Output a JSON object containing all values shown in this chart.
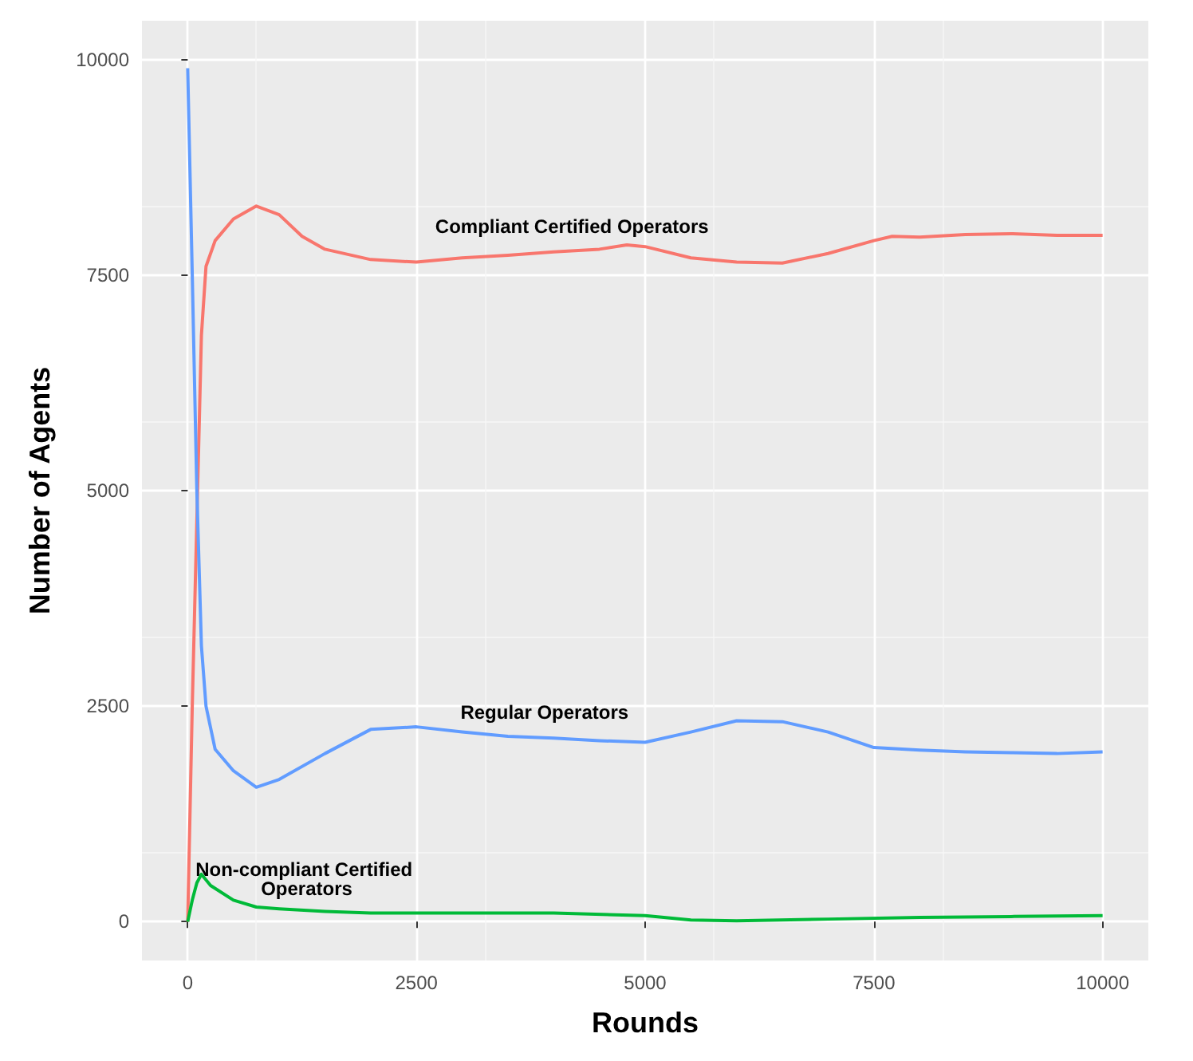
{
  "chart_data": {
    "type": "line",
    "xlabel": "Rounds",
    "ylabel": "Number of Agents",
    "xlim": [
      -500,
      10500
    ],
    "ylim": [
      -450,
      10450
    ],
    "xticks": [
      0,
      2500,
      5000,
      7500,
      10000
    ],
    "yticks": [
      0,
      2500,
      5000,
      7500,
      10000
    ],
    "grid": true,
    "legend": false,
    "marker": "none",
    "line_style": "solid",
    "series": [
      {
        "name": "Compliant Certified Operators",
        "color": "#f8766d",
        "x": [
          0,
          50,
          150,
          200,
          300,
          500,
          750,
          1000,
          1250,
          1500,
          2000,
          2500,
          3000,
          3500,
          4000,
          4500,
          4800,
          5000,
          5500,
          6000,
          6500,
          7000,
          7500,
          7700,
          8000,
          8500,
          9000,
          9500,
          10000
        ],
        "values": [
          0,
          2500,
          6800,
          7600,
          7900,
          8150,
          8300,
          8200,
          7950,
          7800,
          7680,
          7650,
          7700,
          7730,
          7770,
          7800,
          7850,
          7830,
          7700,
          7650,
          7640,
          7750,
          7900,
          7950,
          7940,
          7970,
          7980,
          7960,
          7960
        ]
      },
      {
        "name": "Regular Operators",
        "color": "#619cff",
        "x": [
          0,
          50,
          100,
          150,
          200,
          300,
          500,
          750,
          1000,
          1500,
          2000,
          2500,
          3000,
          3500,
          4000,
          4500,
          5000,
          5500,
          6000,
          6500,
          7000,
          7500,
          8000,
          8500,
          9000,
          9500,
          10000
        ],
        "values": [
          9900,
          7500,
          5000,
          3200,
          2500,
          2000,
          1750,
          1560,
          1650,
          1950,
          2230,
          2260,
          2200,
          2150,
          2130,
          2100,
          2080,
          2200,
          2330,
          2320,
          2200,
          2020,
          1990,
          1970,
          1960,
          1950,
          1970
        ]
      },
      {
        "name": "Non-compliant Certified Operators",
        "color": "#00ba38",
        "x": [
          0,
          50,
          100,
          150,
          250,
          500,
          750,
          1000,
          1500,
          2000,
          3000,
          4000,
          5000,
          5500,
          6000,
          7000,
          8000,
          9000,
          10000
        ],
        "values": [
          0,
          250,
          450,
          550,
          420,
          250,
          170,
          150,
          120,
          100,
          100,
          100,
          70,
          20,
          10,
          30,
          50,
          60,
          70
        ]
      }
    ]
  }
}
